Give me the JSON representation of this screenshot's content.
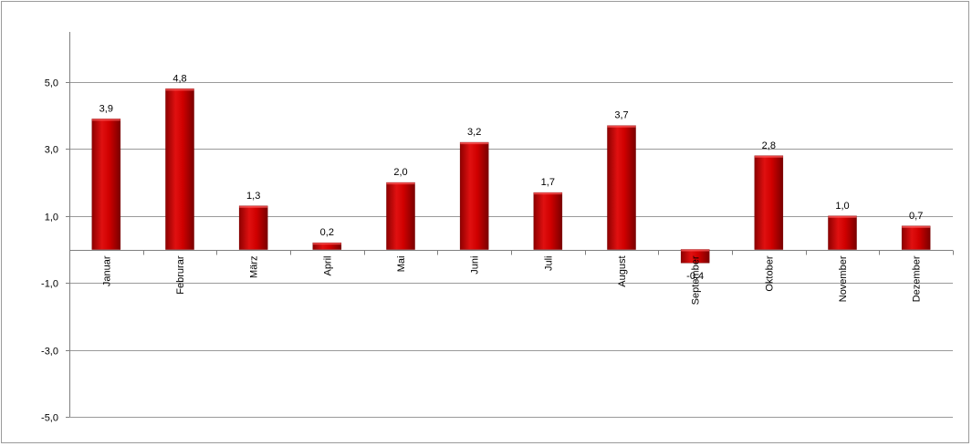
{
  "chart_data": {
    "type": "bar",
    "categories": [
      "Januar",
      "Februrar",
      "März",
      "April",
      "Mai",
      "Juni",
      "Juli",
      "August",
      "September",
      "Oktober",
      "November",
      "Dezember"
    ],
    "values": [
      3.9,
      4.8,
      1.3,
      0.2,
      2.0,
      3.2,
      1.7,
      3.7,
      -0.4,
      2.8,
      1.0,
      0.7
    ],
    "value_labels": [
      "3,9",
      "4,8",
      "1,3",
      "0,2",
      "2,0",
      "3,2",
      "1,7",
      "3,7",
      "-0,4",
      "2,8",
      "1,0",
      "0,7"
    ],
    "yticks": [
      5,
      3,
      1,
      -1,
      -3,
      -5
    ],
    "ytick_labels": [
      "5,0",
      "3,0",
      "1,0",
      "-1,0",
      "-3,0",
      "-5,0"
    ],
    "ylim": [
      -5,
      6.5
    ],
    "grid": true,
    "bar_color": "#c00000",
    "title": "",
    "xlabel": "",
    "ylabel": ""
  }
}
